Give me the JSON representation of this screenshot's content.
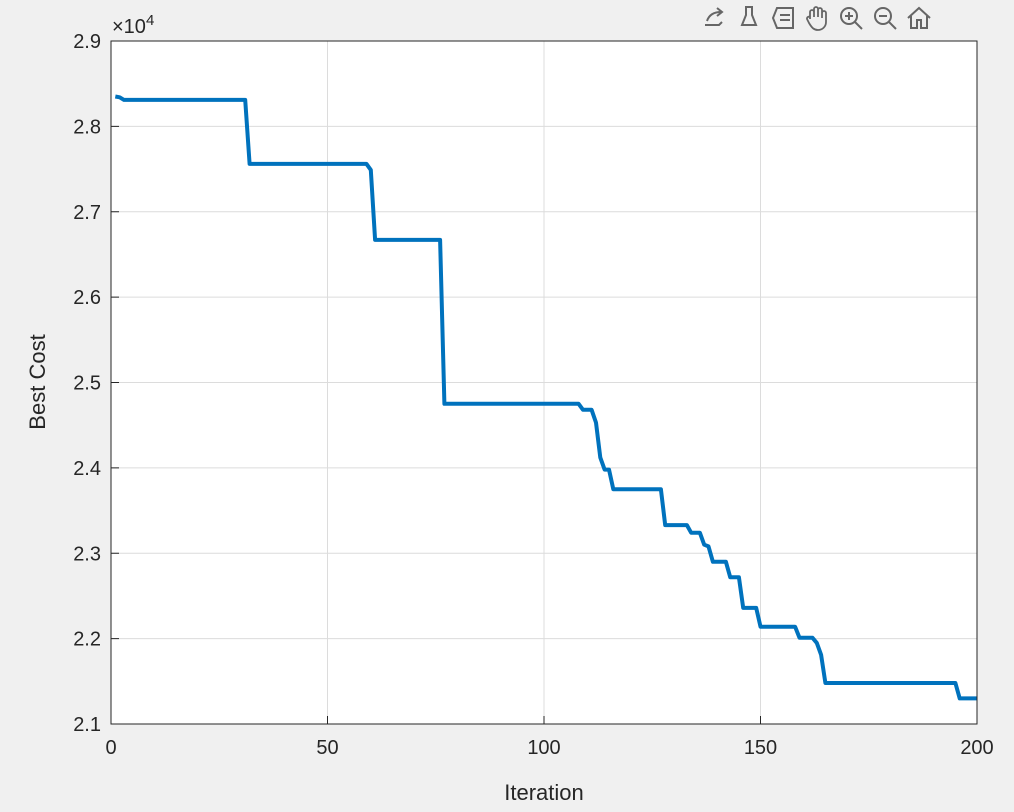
{
  "chart_data": {
    "type": "line",
    "title": "",
    "xlabel": "Iteration",
    "ylabel": "Best Cost",
    "y_exponent_label": "×10",
    "y_exponent": "4",
    "xlim": [
      0,
      200
    ],
    "ylim": [
      21000,
      29000
    ],
    "xticks": [
      0,
      50,
      100,
      150,
      200
    ],
    "yticks": [
      21000,
      22000,
      23000,
      24000,
      25000,
      26000,
      27000,
      28000,
      29000
    ],
    "ytick_labels": [
      "2.1",
      "2.2",
      "2.3",
      "2.4",
      "2.5",
      "2.6",
      "2.7",
      "2.8",
      "2.9"
    ],
    "grid": true,
    "color": "#0072BD",
    "series": [
      {
        "points": [
          [
            1,
            28350
          ],
          [
            2,
            28340
          ],
          [
            3,
            28310
          ],
          [
            31,
            28310
          ],
          [
            32,
            27560
          ],
          [
            59,
            27560
          ],
          [
            60,
            27490
          ],
          [
            61,
            26670
          ],
          [
            76,
            26670
          ],
          [
            77,
            24750
          ],
          [
            108,
            24750
          ],
          [
            109,
            24680
          ],
          [
            111,
            24680
          ],
          [
            112,
            24530
          ],
          [
            113,
            24120
          ],
          [
            114,
            23980
          ],
          [
            115,
            23980
          ],
          [
            116,
            23750
          ],
          [
            127,
            23750
          ],
          [
            128,
            23330
          ],
          [
            133,
            23330
          ],
          [
            134,
            23240
          ],
          [
            136,
            23240
          ],
          [
            137,
            23100
          ],
          [
            138,
            23080
          ],
          [
            139,
            22900
          ],
          [
            142,
            22900
          ],
          [
            143,
            22720
          ],
          [
            145,
            22720
          ],
          [
            146,
            22360
          ],
          [
            149,
            22360
          ],
          [
            150,
            22140
          ],
          [
            158,
            22140
          ],
          [
            159,
            22010
          ],
          [
            162,
            22010
          ],
          [
            163,
            21950
          ],
          [
            164,
            21810
          ],
          [
            165,
            21480
          ],
          [
            195,
            21480
          ],
          [
            196,
            21300
          ],
          [
            200,
            21300
          ]
        ]
      }
    ]
  },
  "toolbar": {
    "icons": [
      "export-icon",
      "brush-icon",
      "data-tips-icon",
      "pan-icon",
      "zoom-in-icon",
      "zoom-out-icon",
      "home-icon"
    ]
  }
}
